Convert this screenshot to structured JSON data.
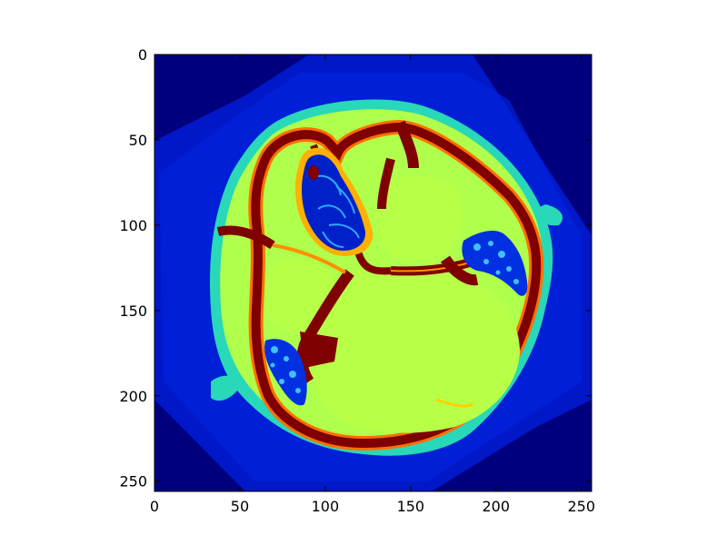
{
  "image": {
    "colormap": "jet",
    "subject": "axial CT slice of a human skull at the skull base",
    "size": [
      256,
      256
    ]
  },
  "axes": {
    "x_ticks": [
      "0",
      "50",
      "100",
      "150",
      "200",
      "250"
    ],
    "y_ticks": [
      "0",
      "50",
      "100",
      "150",
      "200",
      "250"
    ],
    "xlim": [
      0,
      256
    ],
    "ylim": [
      256,
      0
    ]
  },
  "colors": {
    "background": "#00007f",
    "outer_field": "#0020d8",
    "soft_tissue": "#b8ff48",
    "skin": "#28d8b8",
    "bone": "#7f0000",
    "bone_edge": "#ff6000",
    "air": "#0040ff",
    "air_dark": "#0010a0"
  }
}
